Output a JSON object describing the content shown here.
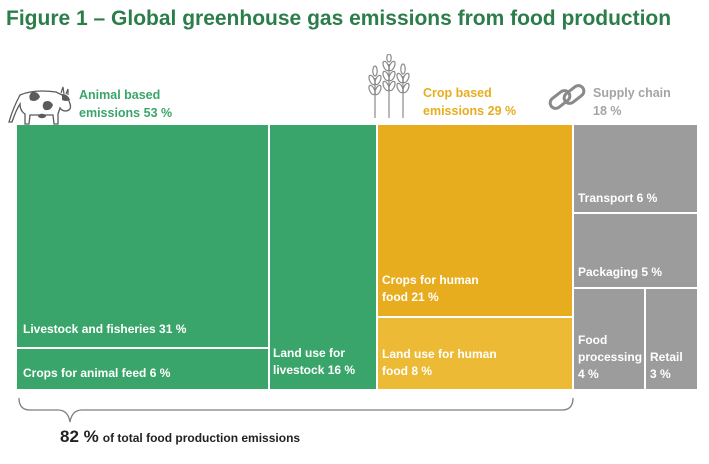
{
  "title": "Figure 1 – Global greenhouse gas emissions from food production",
  "colors": {
    "title": "#2b7d4a",
    "animal": "#3aa56a",
    "crop": "#e7ad1f",
    "crop_light": "#ecba35",
    "supply": "#9c9c9c",
    "supply_label": "#a4a4a4",
    "brace": "#7f7f7f"
  },
  "groups": {
    "animal": {
      "line1": "Animal based",
      "line2": "emissions 53 %",
      "icon": "cow-icon"
    },
    "crop": {
      "line1": "Crop based",
      "line2": "emissions 29 %",
      "icon": "wheat-icon"
    },
    "supply": {
      "line1": "Supply chain",
      "line2": "18 %",
      "icon": "chain-link-icon"
    }
  },
  "cells": {
    "livestock_fisheries": [
      "Livestock and fisheries 31 %"
    ],
    "crops_animal_feed": [
      "Crops for animal feed 6 %"
    ],
    "land_use_livestock": [
      "Land use for",
      "livestock 16 %"
    ],
    "crops_human_food": [
      "Crops for human",
      "food 21 %"
    ],
    "land_use_human_food": [
      "Land use for human",
      "food 8 %"
    ],
    "transport": [
      "Transport 6 %"
    ],
    "packaging": [
      "Packaging 5 %"
    ],
    "food_processing": [
      "Food",
      "processing",
      "4 %"
    ],
    "retail": [
      "Retail",
      "3 %"
    ]
  },
  "footer": {
    "value": "82 %",
    "text": "of total food production emissions"
  },
  "chart_data": {
    "type": "treemap",
    "title": "Figure 1 – Global greenhouse gas emissions from food production",
    "unit": "%",
    "groups": [
      {
        "name": "Animal based emissions",
        "total": 53,
        "items": [
          {
            "name": "Livestock and fisheries",
            "value": 31
          },
          {
            "name": "Crops for animal feed",
            "value": 6
          },
          {
            "name": "Land use for livestock",
            "value": 16
          }
        ]
      },
      {
        "name": "Crop based emissions",
        "total": 29,
        "items": [
          {
            "name": "Crops for human food",
            "value": 21
          },
          {
            "name": "Land use for human food",
            "value": 8
          }
        ]
      },
      {
        "name": "Supply chain",
        "total": 18,
        "items": [
          {
            "name": "Transport",
            "value": 6
          },
          {
            "name": "Packaging",
            "value": 5
          },
          {
            "name": "Food processing",
            "value": 4
          },
          {
            "name": "Retail",
            "value": 3
          }
        ]
      }
    ],
    "annotation": {
      "value": 82,
      "text": "of total food production emissions"
    }
  }
}
